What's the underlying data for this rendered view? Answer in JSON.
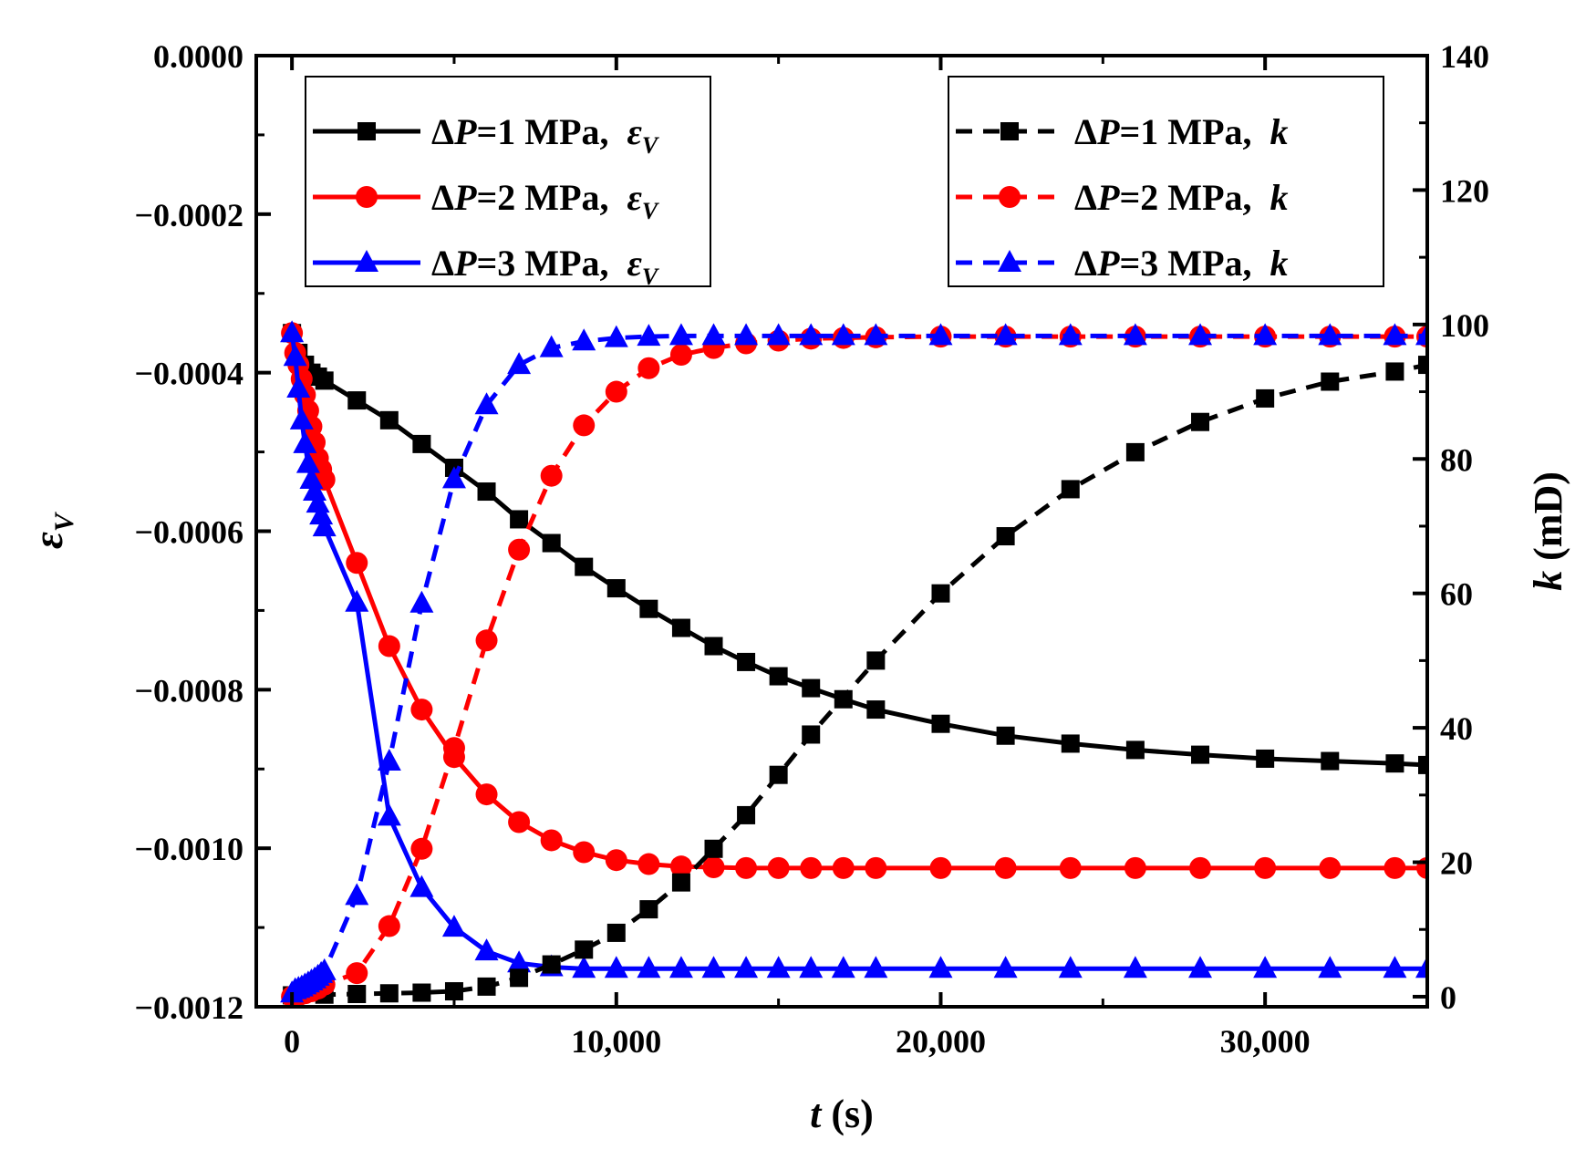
{
  "chart_data": {
    "type": "line",
    "x_axis": {
      "label_var": "t",
      "label_unit": " (s)",
      "range": [
        -1100,
        35000
      ],
      "ticks": [
        0,
        10000,
        20000,
        30000
      ],
      "tick_labels": [
        "0",
        "10,000",
        "20,000",
        "30,000"
      ]
    },
    "y_left": {
      "label": "ε",
      "label_sub": "V",
      "range": [
        -0.0012,
        0.0
      ],
      "ticks": [
        0.0,
        -0.0002,
        -0.0004,
        -0.0006,
        -0.0008,
        -0.001,
        -0.0012
      ],
      "tick_labels": [
        "0.0000",
        "−0.0002",
        "−0.0004",
        "−0.0006",
        "−0.0008",
        "−0.0010",
        "−0.0012"
      ]
    },
    "y_right": {
      "label_var": "k",
      "label_unit": " (mD)",
      "range": [
        -1.5,
        140
      ],
      "ticks": [
        0,
        20,
        40,
        60,
        80,
        100,
        120,
        140
      ],
      "tick_labels": [
        "0",
        "20",
        "40",
        "60",
        "80",
        "100",
        "120",
        "140"
      ]
    },
    "legend_left": {
      "position": "top-left",
      "entries": [
        {
          "prefix": "Δ",
          "var": "P",
          "text": "=1 MPa,  ",
          "sym": "ε",
          "sub": "V"
        },
        {
          "prefix": "Δ",
          "var": "P",
          "text": "=2 MPa,  ",
          "sym": "ε",
          "sub": "V"
        },
        {
          "prefix": "Δ",
          "var": "P",
          "text": "=3 MPa,  ",
          "sym": "ε",
          "sub": "V"
        }
      ]
    },
    "legend_right": {
      "position": "top-right",
      "entries": [
        {
          "prefix": "Δ",
          "var": "P",
          "text": "=1 MPa,  ",
          "sym": "k"
        },
        {
          "prefix": "Δ",
          "var": "P",
          "text": "=2 MPa,  ",
          "sym": "k"
        },
        {
          "prefix": "Δ",
          "var": "P",
          "text": "=3 MPa,  ",
          "sym": "k"
        }
      ]
    },
    "series": [
      {
        "name": "ΔP=1 MPa, εV",
        "axis": "left",
        "color": "#000000",
        "marker": "square",
        "dash": false,
        "x": [
          0,
          200,
          400,
          600,
          800,
          1000,
          2000,
          3000,
          4000,
          5000,
          6000,
          7000,
          8000,
          9000,
          10000,
          11000,
          12000,
          13000,
          14000,
          15000,
          16000,
          17000,
          18000,
          20000,
          22000,
          24000,
          26000,
          28000,
          30000,
          32000,
          34000,
          35000
        ],
        "y": [
          -0.00035,
          -0.000375,
          -0.00039,
          -0.0004,
          -0.000405,
          -0.00041,
          -0.000435,
          -0.00046,
          -0.00049,
          -0.00052,
          -0.00055,
          -0.000585,
          -0.000615,
          -0.000645,
          -0.000672,
          -0.000698,
          -0.000722,
          -0.000745,
          -0.000765,
          -0.000783,
          -0.000798,
          -0.000812,
          -0.000825,
          -0.000843,
          -0.000858,
          -0.000868,
          -0.000876,
          -0.000882,
          -0.000887,
          -0.00089,
          -0.000893,
          -0.000895
        ]
      },
      {
        "name": "ΔP=2 MPa, εV",
        "axis": "left",
        "color": "#ff0000",
        "marker": "circle",
        "dash": false,
        "x": [
          0,
          100,
          200,
          300,
          400,
          500,
          600,
          700,
          800,
          900,
          1000,
          2000,
          3000,
          4000,
          5000,
          6000,
          7000,
          8000,
          9000,
          10000,
          11000,
          12000,
          13000,
          14000,
          15000,
          16000,
          17000,
          18000,
          20000,
          22000,
          24000,
          26000,
          28000,
          30000,
          32000,
          34000,
          35000
        ],
        "y": [
          -0.00035,
          -0.000375,
          -0.00039,
          -0.000408,
          -0.000428,
          -0.000448,
          -0.000468,
          -0.000488,
          -0.000508,
          -0.000522,
          -0.000535,
          -0.00064,
          -0.000745,
          -0.000825,
          -0.000885,
          -0.000932,
          -0.000967,
          -0.00099,
          -0.001005,
          -0.001015,
          -0.00102,
          -0.001023,
          -0.001024,
          -0.001025,
          -0.001025,
          -0.001025,
          -0.001025,
          -0.001025,
          -0.001025,
          -0.001025,
          -0.001025,
          -0.001025,
          -0.001025,
          -0.001025,
          -0.001025,
          -0.001025,
          -0.001025
        ]
      },
      {
        "name": "ΔP=3 MPa, εV",
        "axis": "left",
        "color": "#0000ff",
        "marker": "triangle",
        "dash": false,
        "x": [
          0,
          100,
          200,
          300,
          400,
          500,
          600,
          700,
          800,
          900,
          1000,
          2000,
          3000,
          4000,
          5000,
          6000,
          7000,
          8000,
          9000,
          10000,
          11000,
          12000,
          13000,
          14000,
          15000,
          16000,
          17000,
          18000,
          20000,
          22000,
          24000,
          26000,
          28000,
          30000,
          32000,
          34000,
          35000
        ],
        "y": [
          -0.00035,
          -0.00038,
          -0.00042,
          -0.00046,
          -0.00049,
          -0.000515,
          -0.000535,
          -0.00055,
          -0.000565,
          -0.00058,
          -0.000595,
          -0.00069,
          -0.00096,
          -0.00105,
          -0.0011,
          -0.00113,
          -0.001145,
          -0.00115,
          -0.001152,
          -0.001152,
          -0.001152,
          -0.001152,
          -0.001152,
          -0.001152,
          -0.001152,
          -0.001152,
          -0.001152,
          -0.001152,
          -0.001152,
          -0.001152,
          -0.001152,
          -0.001152,
          -0.001152,
          -0.001152,
          -0.001152,
          -0.001152,
          -0.001152
        ]
      },
      {
        "name": "ΔP=1 MPa, k",
        "axis": "right",
        "color": "#000000",
        "marker": "square",
        "dash": true,
        "x": [
          0,
          1000,
          2000,
          3000,
          4000,
          5000,
          6000,
          7000,
          8000,
          9000,
          10000,
          11000,
          12000,
          13000,
          14000,
          15000,
          16000,
          18000,
          20000,
          22000,
          24000,
          26000,
          28000,
          30000,
          32000,
          34000,
          35000
        ],
        "y": [
          0.2,
          0.3,
          0.4,
          0.5,
          0.6,
          0.8,
          1.5,
          2.8,
          4.8,
          7.0,
          9.5,
          13.0,
          17.0,
          22.0,
          27.0,
          33.0,
          39.0,
          50.0,
          60.0,
          68.5,
          75.5,
          81.0,
          85.5,
          89.0,
          91.5,
          93.0,
          94.0
        ]
      },
      {
        "name": "ΔP=2 MPa, k",
        "axis": "right",
        "color": "#ff0000",
        "marker": "circle",
        "dash": true,
        "x": [
          0,
          200,
          400,
          600,
          800,
          1000,
          2000,
          3000,
          4000,
          5000,
          6000,
          7000,
          8000,
          9000,
          10000,
          11000,
          12000,
          13000,
          14000,
          15000,
          16000,
          17000,
          18000,
          20000,
          22000,
          24000,
          26000,
          28000,
          30000,
          32000,
          34000,
          35000
        ],
        "y": [
          0.0,
          0.2,
          0.5,
          0.8,
          1.2,
          1.8,
          3.5,
          10.5,
          22.0,
          37.0,
          53.0,
          66.5,
          77.5,
          85.0,
          90.0,
          93.5,
          95.5,
          96.5,
          97.2,
          97.6,
          97.9,
          98.0,
          98.1,
          98.2,
          98.2,
          98.2,
          98.2,
          98.2,
          98.2,
          98.2,
          98.2,
          98.2
        ]
      },
      {
        "name": "ΔP=3 MPa, k",
        "axis": "right",
        "color": "#0000ff",
        "marker": "triangle",
        "dash": true,
        "x": [
          0,
          100,
          200,
          300,
          400,
          500,
          600,
          700,
          800,
          900,
          1000,
          2000,
          3000,
          4000,
          5000,
          6000,
          7000,
          8000,
          9000,
          10000,
          11000,
          12000,
          13000,
          14000,
          15000,
          16000,
          17000,
          18000,
          20000,
          22000,
          24000,
          26000,
          28000,
          30000,
          32000,
          34000,
          35000
        ],
        "y": [
          0.5,
          1.0,
          1.2,
          1.4,
          1.7,
          2.0,
          2.3,
          2.6,
          3.0,
          3.4,
          3.8,
          15.0,
          35.0,
          58.5,
          77.0,
          88.0,
          94.0,
          96.5,
          97.5,
          98.0,
          98.2,
          98.3,
          98.3,
          98.3,
          98.3,
          98.3,
          98.3,
          98.3,
          98.3,
          98.3,
          98.3,
          98.3,
          98.3,
          98.3,
          98.3,
          98.3,
          98.3
        ]
      }
    ]
  }
}
